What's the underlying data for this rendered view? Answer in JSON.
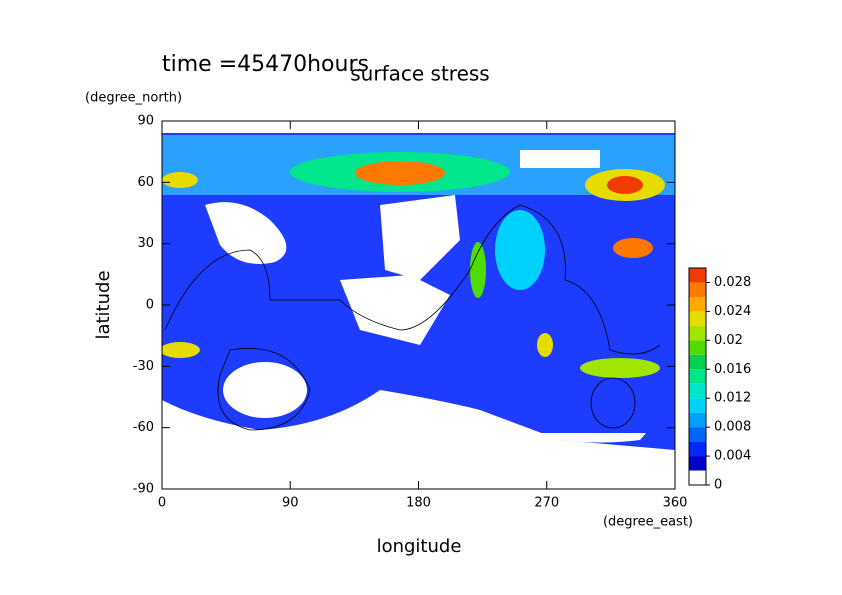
{
  "chart_data": {
    "type": "contour",
    "title": "surface stress",
    "subtitle": "time =45470hours",
    "x_label": "longitude",
    "y_label": "latitude",
    "x_unit": "(degree_east)",
    "y_unit": "(degree_north)",
    "xlim": [
      0,
      360
    ],
    "xticks": [
      0,
      90,
      180,
      270,
      360
    ],
    "ylim": [
      -90,
      90
    ],
    "yticks": [
      -90,
      -60,
      -30,
      0,
      30,
      60,
      90
    ],
    "colorbar": {
      "bounds": [
        0,
        0.002,
        0.004,
        0.006,
        0.008,
        0.01,
        0.012,
        0.014,
        0.016,
        0.018,
        0.02,
        0.022,
        0.024,
        0.026,
        0.028,
        0.03
      ],
      "colors": [
        "#ffffff",
        "#0000c8",
        "#0028ff",
        "#0064ff",
        "#00a0ff",
        "#00d2ff",
        "#00e6c8",
        "#00e68c",
        "#00d250",
        "#50dc00",
        "#a0e600",
        "#e6dc00",
        "#ffaa00",
        "#ff7800",
        "#f03c00"
      ],
      "ticks": [
        0,
        0.004,
        0.008,
        0.012,
        0.016,
        0.02,
        0.024,
        0.028
      ]
    }
  }
}
